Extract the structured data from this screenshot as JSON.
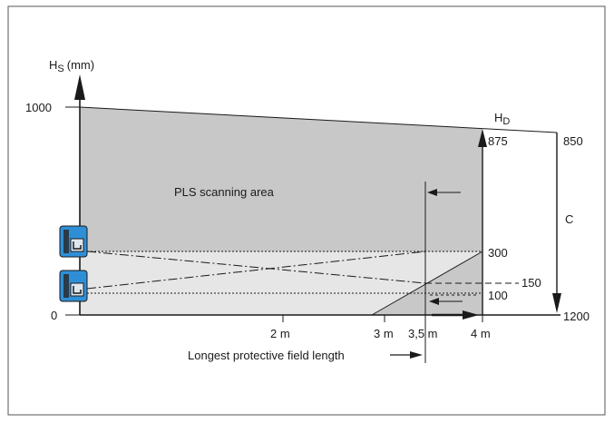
{
  "diagram": {
    "y_axis_label": "H",
    "y_axis_label_sub": "S",
    "y_axis_unit": "(mm)",
    "right_label": "H",
    "right_label_sub": "D",
    "tick_1000": "1000",
    "tick_0": "0",
    "value_875": "875",
    "value_850": "850",
    "value_300": "300",
    "value_150": "150",
    "value_100": "100",
    "value_1200": "1200",
    "dim_c": "C",
    "area_label": "PLS scanning area",
    "x_2m": "2 m",
    "x_3m": "3 m",
    "x_35m": "3,5 m",
    "x_4m": "4 m",
    "bottom_caption": "Longest protective field length",
    "colors": {
      "scan_area": "#c8c8c8",
      "lower_band": "#e6e6e6",
      "sensor_blue": "#2f8fd6",
      "sensor_dark": "#2a3a48",
      "line": "#1a1a1a"
    }
  }
}
